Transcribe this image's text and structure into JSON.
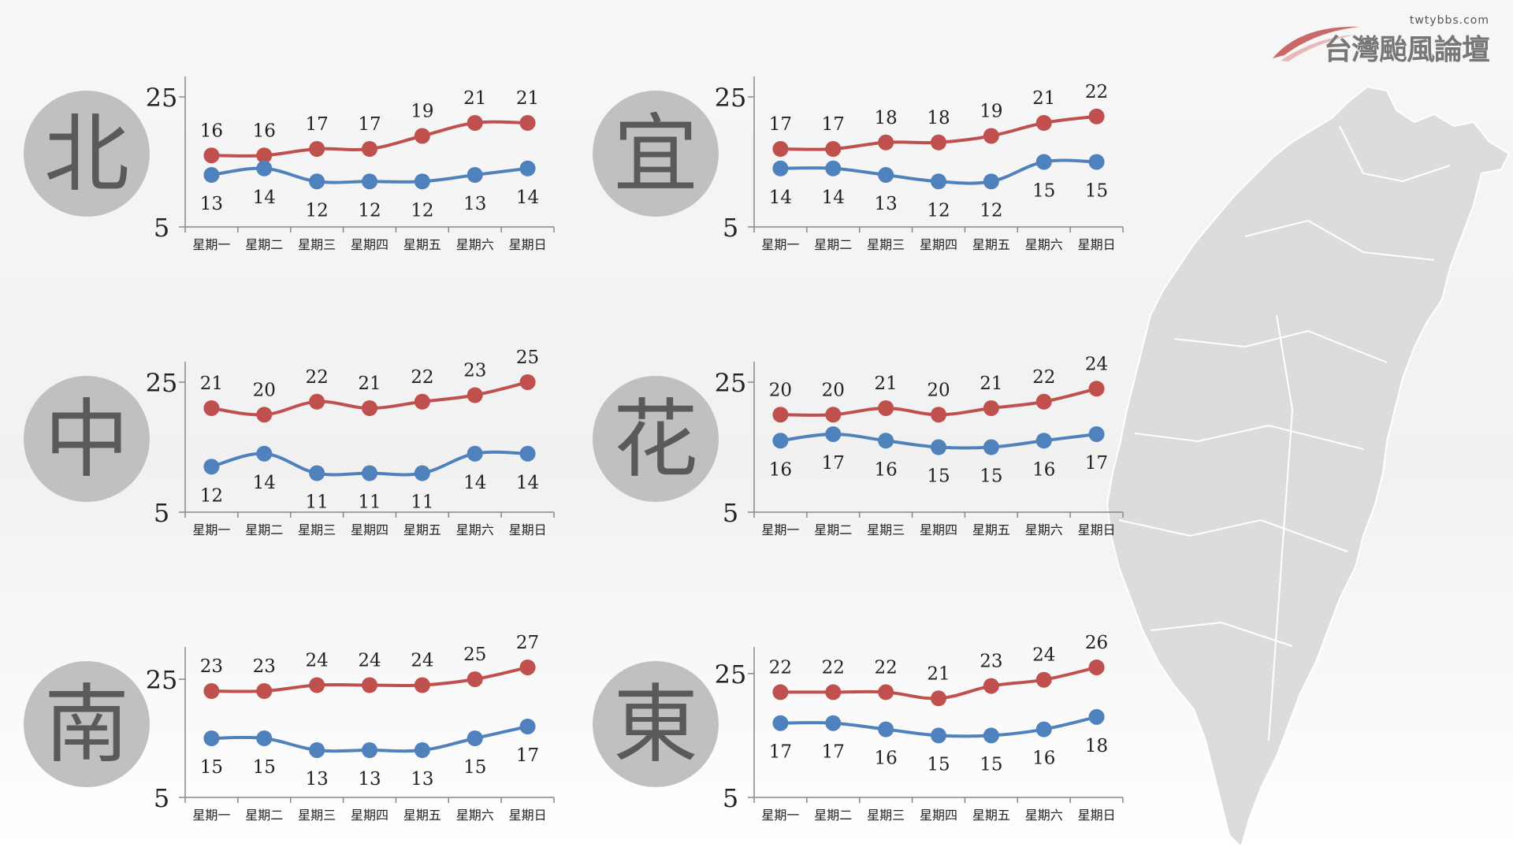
{
  "site": {
    "url": "twtybbs.com",
    "name": "台灣颱風論壇"
  },
  "colors": {
    "high": "#c0504d",
    "low": "#4f81bd",
    "badge": "#c0c0c0",
    "badge_text": "#5a5a5a",
    "map_fill": "#dcdcdc"
  },
  "chart_data": [
    {
      "type": "line",
      "region": "北",
      "categories": [
        "星期一",
        "星期二",
        "星期三",
        "星期四",
        "星期五",
        "星期六",
        "星期日"
      ],
      "yticks": [
        25,
        5
      ],
      "ylim": [
        5,
        25
      ],
      "series": [
        {
          "role": "high",
          "values": [
            16,
            16,
            17,
            17,
            19,
            21,
            21
          ]
        },
        {
          "role": "low",
          "values": [
            13,
            14,
            12,
            12,
            12,
            13,
            14
          ]
        }
      ]
    },
    {
      "type": "line",
      "region": "宜",
      "categories": [
        "星期一",
        "星期二",
        "星期三",
        "星期四",
        "星期五",
        "星期六",
        "星期日"
      ],
      "yticks": [
        25,
        5
      ],
      "ylim": [
        5,
        25
      ],
      "series": [
        {
          "role": "high",
          "values": [
            17,
            17,
            18,
            18,
            19,
            21,
            22
          ]
        },
        {
          "role": "low",
          "values": [
            14,
            14,
            13,
            12,
            12,
            15,
            15
          ]
        }
      ]
    },
    {
      "type": "line",
      "region": "中",
      "categories": [
        "星期一",
        "星期二",
        "星期三",
        "星期四",
        "星期五",
        "星期六",
        "星期日"
      ],
      "yticks": [
        25,
        5
      ],
      "ylim": [
        5,
        25
      ],
      "series": [
        {
          "role": "high",
          "values": [
            21,
            20,
            22,
            21,
            22,
            23,
            25
          ]
        },
        {
          "role": "low",
          "values": [
            12,
            14,
            11,
            11,
            11,
            14,
            14
          ]
        }
      ]
    },
    {
      "type": "line",
      "region": "花",
      "categories": [
        "星期一",
        "星期二",
        "星期三",
        "星期四",
        "星期五",
        "星期六",
        "星期日"
      ],
      "yticks": [
        25,
        5
      ],
      "ylim": [
        5,
        25
      ],
      "series": [
        {
          "role": "high",
          "values": [
            20,
            20,
            21,
            20,
            21,
            22,
            24
          ]
        },
        {
          "role": "low",
          "values": [
            16,
            17,
            16,
            15,
            15,
            16,
            17
          ]
        }
      ]
    },
    {
      "type": "line",
      "region": "南",
      "categories": [
        "星期一",
        "星期二",
        "星期三",
        "星期四",
        "星期五",
        "星期六",
        "星期日"
      ],
      "yticks": [
        25,
        5
      ],
      "ylim": [
        5,
        27
      ],
      "series": [
        {
          "role": "high",
          "values": [
            23,
            23,
            24,
            24,
            24,
            25,
            27
          ]
        },
        {
          "role": "low",
          "values": [
            15,
            15,
            13,
            13,
            13,
            15,
            17
          ]
        }
      ]
    },
    {
      "type": "line",
      "region": "東",
      "categories": [
        "星期一",
        "星期二",
        "星期三",
        "星期四",
        "星期五",
        "星期六",
        "星期日"
      ],
      "yticks": [
        25,
        5
      ],
      "ylim": [
        5,
        26
      ],
      "series": [
        {
          "role": "high",
          "values": [
            22,
            22,
            22,
            21,
            23,
            24,
            26
          ]
        },
        {
          "role": "low",
          "values": [
            17,
            17,
            16,
            15,
            15,
            16,
            18
          ]
        }
      ]
    }
  ]
}
